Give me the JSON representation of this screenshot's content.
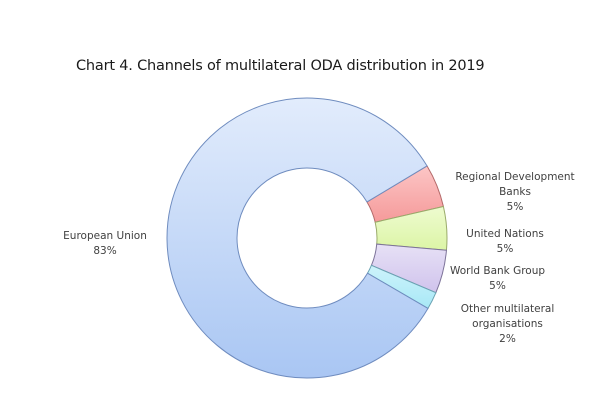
{
  "chart_data": {
    "type": "pie",
    "subtype": "donut",
    "title": "Chart 4. Channels of multilateral ODA distribution in 2019",
    "categories": [
      "Regional Development Banks",
      "United Nations",
      "World Bank Group",
      "Other multilateral organisations",
      "European Union"
    ],
    "values": [
      5,
      5,
      5,
      2,
      83
    ],
    "unit": "%",
    "colors": [
      "#f5a3a3",
      "#e4f7b5",
      "#d9cdee",
      "#b5ecf7",
      "#b8cff5"
    ],
    "labels": [
      {
        "lines": [
          "Regional Development",
          "Banks",
          "5%"
        ]
      },
      {
        "lines": [
          "United Nations",
          "5%"
        ]
      },
      {
        "lines": [
          "World Bank Group",
          "5%"
        ]
      },
      {
        "lines": [
          "Other multilateral",
          "organisations",
          "2%"
        ]
      },
      {
        "lines": [
          "European Union",
          "83%"
        ]
      }
    ],
    "legend": "none (data labels)"
  },
  "title": "Chart 4. Channels of multilateral ODA distribution in 2019",
  "labels": {
    "rdb": {
      "l1": "Regional Development",
      "l2": "Banks",
      "l3": "5%"
    },
    "un": {
      "l1": "United Nations",
      "l2": "5%"
    },
    "wbg": {
      "l1": "World Bank Group",
      "l2": "5%"
    },
    "other": {
      "l1": "Other multilateral",
      "l2": "organisations",
      "l3": "2%"
    },
    "eu": {
      "l1": "European Union",
      "l2": "83%"
    }
  }
}
